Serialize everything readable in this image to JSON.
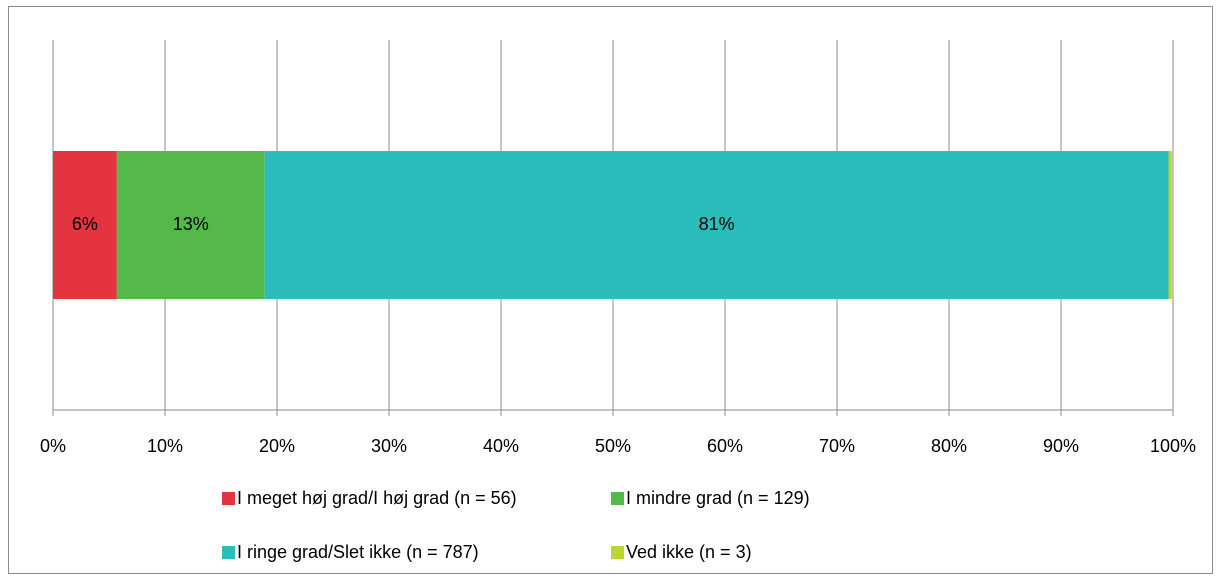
{
  "chart_data": {
    "type": "stacked-barh",
    "series": [
      {
        "name": "I meget høj grad/I høj grad (n = 56)",
        "color": "#e3343f",
        "values": [
          5.7
        ],
        "value_labels": [
          "6%"
        ]
      },
      {
        "name": "I mindre grad (n = 129)",
        "color": "#55b84a",
        "values": [
          13.2
        ],
        "value_labels": [
          "13%"
        ]
      },
      {
        "name": "I ringe grad/Slet ikke (n = 787)",
        "color": "#2bbcbc",
        "values": [
          80.7
        ],
        "value_labels": [
          "81%"
        ]
      },
      {
        "name": "Ved ikke (n = 3)",
        "color": "#bcd631",
        "values": [
          0.3
        ],
        "value_labels": [
          null
        ]
      }
    ],
    "xlim": [
      0,
      100
    ],
    "xticks": [
      {
        "value": 0,
        "label": "0%"
      },
      {
        "value": 10,
        "label": "10%"
      },
      {
        "value": 20,
        "label": "20%"
      },
      {
        "value": 30,
        "label": "30%"
      },
      {
        "value": 40,
        "label": "40%"
      },
      {
        "value": 50,
        "label": "50%"
      },
      {
        "value": 60,
        "label": "60%"
      },
      {
        "value": 70,
        "label": "70%"
      },
      {
        "value": 80,
        "label": "80%"
      },
      {
        "value": 90,
        "label": "90%"
      },
      {
        "value": 100,
        "label": "100%"
      }
    ],
    "grid": true,
    "legend": "bottom"
  }
}
